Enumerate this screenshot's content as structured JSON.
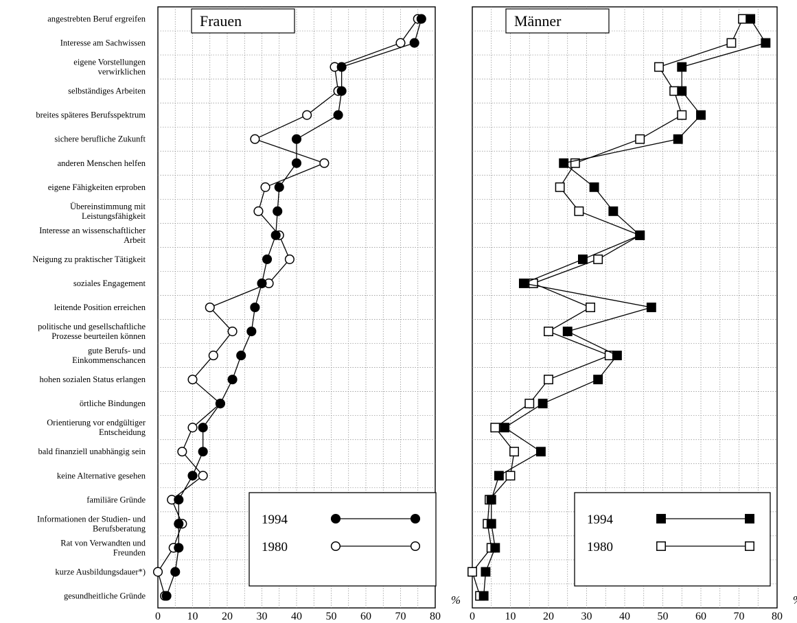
{
  "chart_data": [
    {
      "type": "line",
      "title": "Frauen",
      "xunit": "%",
      "xlim": [
        0,
        80
      ],
      "xticks": [
        "0",
        "10",
        "20",
        "30",
        "40",
        "50",
        "60",
        "70",
        "80"
      ],
      "grid": true,
      "legend_position": "bottom-right",
      "categories": [
        [
          "angestrebten Beruf ergreifen"
        ],
        [
          "Interesse am Sachwissen"
        ],
        [
          "eigene Vorstellungen",
          "verwirklichen"
        ],
        [
          "selbständiges Arbeiten"
        ],
        [
          "breites späteres Berufsspektrum"
        ],
        [
          "sichere berufliche Zukunft"
        ],
        [
          "anderen Menschen helfen"
        ],
        [
          "eigene Fähigkeiten erproben"
        ],
        [
          "Übereinstimmung mit",
          "Leistungsfähigkeit"
        ],
        [
          "Interesse an wissenschaftlicher",
          "Arbeit"
        ],
        [
          "Neigung zu praktischer Tätigkeit"
        ],
        [
          "soziales Engagement"
        ],
        [
          "leitende Position erreichen"
        ],
        [
          "politische und gesellschaftliche",
          "Prozesse beurteilen können"
        ],
        [
          "gute Berufs- und",
          "Einkommenschancen"
        ],
        [
          "hohen sozialen Status erlangen"
        ],
        [
          "örtliche Bindungen"
        ],
        [
          "Orientierung vor endgültiger",
          "Entscheidung"
        ],
        [
          "bald finanziell unabhängig sein"
        ],
        [
          "keine Alternative gesehen"
        ],
        [
          "familiäre Gründe"
        ],
        [
          "Informationen der Studien- und",
          "Berufsberatung"
        ],
        [
          "Rat von Verwandten und",
          "Freunden"
        ],
        [
          "kurze Ausbildungsdauer*)"
        ],
        [
          "gesundheitliche Gründe"
        ]
      ],
      "series": [
        {
          "name": "1994",
          "marker": "filled-circle",
          "values": [
            76,
            74,
            53,
            53,
            52,
            40,
            40,
            35,
            34.5,
            34,
            31.5,
            30,
            28,
            27,
            24,
            21.5,
            18,
            13,
            13,
            10,
            6,
            6,
            6,
            5,
            2.5
          ]
        },
        {
          "name": "1980",
          "marker": "open-circle",
          "values": [
            75,
            70,
            51,
            52,
            43,
            28,
            48,
            31,
            29,
            35,
            38,
            32,
            15,
            21.5,
            16,
            10,
            18,
            10,
            7,
            13,
            4,
            7,
            4.5,
            0,
            2
          ]
        }
      ]
    },
    {
      "type": "line",
      "title": "Männer",
      "xunit": "%",
      "xlim": [
        0,
        80
      ],
      "xticks": [
        "0",
        "10",
        "20",
        "30",
        "40",
        "50",
        "60",
        "70",
        "80"
      ],
      "grid": true,
      "legend_position": "bottom-right",
      "series": [
        {
          "name": "1994",
          "marker": "filled-square",
          "values": [
            73,
            77,
            55,
            55,
            60,
            54,
            24,
            32,
            37,
            44,
            29,
            13.5,
            47,
            25,
            38,
            33,
            18.5,
            8.5,
            18,
            7,
            5,
            5,
            6,
            3.5,
            3
          ]
        },
        {
          "name": "1980",
          "marker": "open-square",
          "values": [
            71,
            68,
            49,
            53,
            55,
            44,
            27,
            23,
            28,
            44,
            33,
            16,
            31,
            20,
            36,
            20,
            15,
            6,
            11,
            10,
            4.5,
            4,
            5,
            0,
            2
          ]
        }
      ]
    }
  ]
}
